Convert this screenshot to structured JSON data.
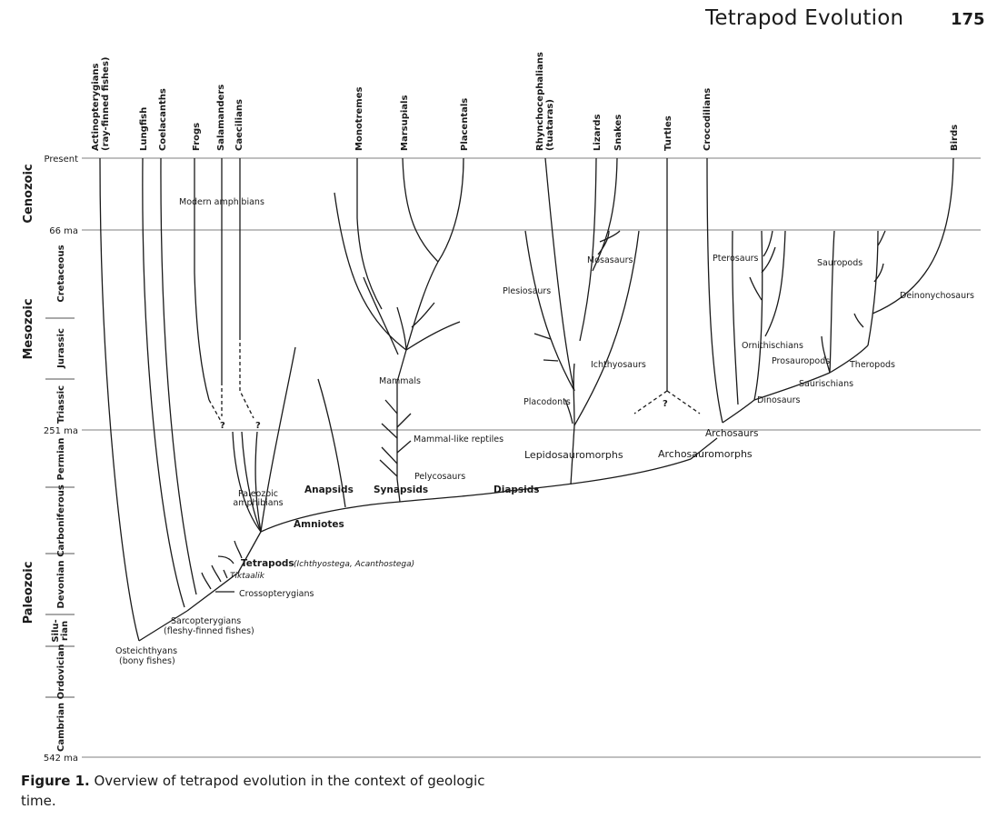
{
  "header": {
    "title": "Tetrapod Evolution",
    "page_number": "175"
  },
  "caption": {
    "label": "Figure 1.",
    "text": " Overview of tetrapod evolution in the context of geologic time."
  },
  "time_markers": [
    "Present",
    "66 ma",
    "251 ma",
    "542 ma"
  ],
  "eras": [
    "Cenozoic",
    "Mesozoic",
    "Paleozoic"
  ],
  "periods": [
    "Cretaceous",
    "Jurassic",
    "Triassic",
    "Permian",
    "Carboniferous",
    "Devonian",
    "Silu-",
    "rian",
    "Ordovician",
    "Cambrian"
  ],
  "taxa_top": [
    [
      "Actinopterygians",
      "(ray-finned fishes)"
    ],
    [
      "Lungfish"
    ],
    [
      "Coelacanths"
    ],
    [
      "Frogs"
    ],
    [
      "Salamanders"
    ],
    [
      "Caecilians"
    ],
    [
      "Monotremes"
    ],
    [
      "Marsupials"
    ],
    [
      "Placentals"
    ],
    [
      "Rhynchocephalians",
      "(tuataras)"
    ],
    [
      "Lizards"
    ],
    [
      "Snakes"
    ],
    [
      "Turtles"
    ],
    [
      "Crocodilians"
    ],
    [
      "Birds"
    ]
  ],
  "labels": {
    "modern_amphibians": "Modern amphibians",
    "mosasaurs": "Mosasaurs",
    "plesiosaurs": "Plesiosaurs",
    "pterosaurs": "Pterosaurs",
    "sauropods": "Sauropods",
    "deinonychosaurs": "Deinonychosaurs",
    "ornithischians": "Ornithischians",
    "prosauropods": "Prosauropods",
    "theropods": "Theropods",
    "saurischians": "Saurischians",
    "dinosaurs": "Dinosaurs",
    "ichthyosaurs": "Ichthyosaurs",
    "mammals": "Mammals",
    "placodonts": "Placodonts",
    "archosaurs": "Archosaurs",
    "mammal_like_reptiles": "Mammal-like reptiles",
    "lepidosauromorphs": "Lepidosauromorphs",
    "archosauromorphs": "Archosauromorphs",
    "pelycosaurs": "Pelycosaurs",
    "anapsids": "Anapsids",
    "synapsids": "Synapsids",
    "diapsids": "Diapsids",
    "paleozoic_amphibians_1": "Paleozoic",
    "paleozoic_amphibians_2": "amphibians",
    "amniotes": "Amniotes",
    "tetrapods": "Tetrapods",
    "tetrapods_examples": "(Ichthyostega, Acanthostega)",
    "tiktaalik": "Tiktaalik",
    "crossopterygians": "Crossopterygians",
    "sarcopterygians_1": "Sarcopterygians",
    "sarcopterygians_2": "(fleshy-finned fishes)",
    "osteichthyans_1": "Osteichthyans",
    "osteichthyans_2": "(bony fishes)",
    "question_mark": "?"
  }
}
